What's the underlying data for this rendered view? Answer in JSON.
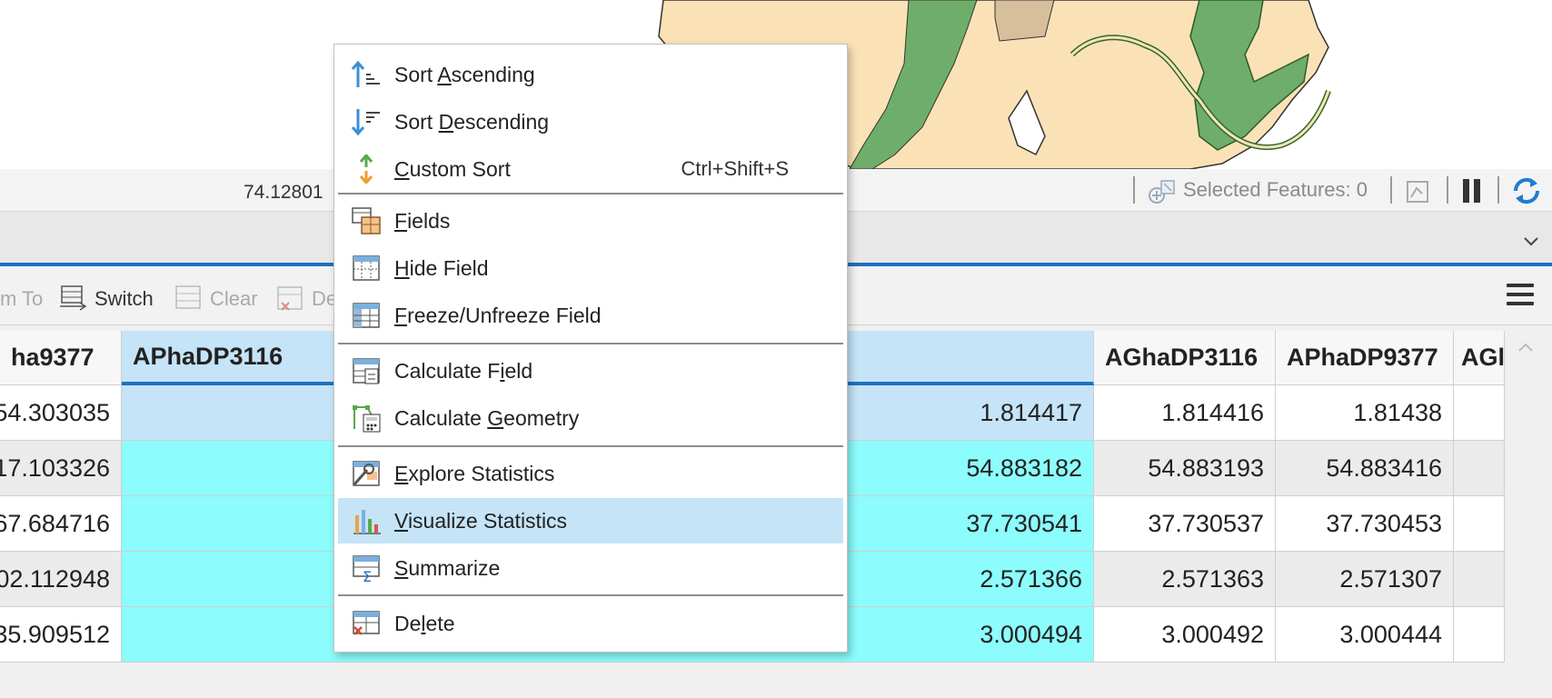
{
  "status": {
    "coordinate": "74.12801",
    "selected_features": "Selected Features: 0"
  },
  "toolbar": {
    "zoom_to_label": "m To",
    "switch_label": "Switch",
    "clear_label": "Clear",
    "delete_label": "De"
  },
  "table": {
    "headers": [
      "ha9377",
      "APhaDP3116",
      "AGhaDP3116",
      "APhaDP9377",
      "AGl"
    ],
    "rows": [
      {
        "c0": "54.303035",
        "c2": "1.814417",
        "c3": "1.814416",
        "c4": "1.81438"
      },
      {
        "c0": "17.103326",
        "c2": "54.883182",
        "c3": "54.883193",
        "c4": "54.883416"
      },
      {
        "c0": "67.684716",
        "c2": "37.730541",
        "c3": "37.730537",
        "c4": "37.730453"
      },
      {
        "c0": "02.112948",
        "c2": "2.571366",
        "c3": "2.571363",
        "c4": "2.571307"
      },
      {
        "c0": "35.909512",
        "c2": "3.000494",
        "c3": "3.000492",
        "c4": "3.000444"
      }
    ]
  },
  "context_menu": {
    "sort_ascending": {
      "pre": "Sort ",
      "key": "A",
      "post": "scending"
    },
    "sort_descending": {
      "pre": "Sort ",
      "key": "D",
      "post": "escending"
    },
    "custom_sort": {
      "pre": "",
      "key": "C",
      "post": "ustom Sort",
      "shortcut": "Ctrl+Shift+S"
    },
    "fields": {
      "pre": "",
      "key": "F",
      "post": "ields"
    },
    "hide_field": {
      "pre": "",
      "key": "H",
      "post": "ide Field"
    },
    "freeze_field": {
      "pre": "",
      "key": "F",
      "post": "reeze/Unfreeze Field"
    },
    "calculate_field": {
      "pre": "Calculate F",
      "key": "i",
      "post": "eld"
    },
    "calculate_geometry": {
      "pre": "Calculate ",
      "key": "G",
      "post": "eometry"
    },
    "explore_statistics": {
      "pre": "",
      "key": "E",
      "post": "xplore Statistics"
    },
    "visualize_statistics": {
      "pre": "",
      "key": "V",
      "post": "isualize Statistics"
    },
    "summarize": {
      "pre": "",
      "key": "S",
      "post": "ummarize"
    },
    "delete": {
      "pre": "De",
      "key": "l",
      "post": "ete"
    }
  },
  "colors": {
    "selection_blue": "#c5e4f7",
    "highlight_cyan": "#8cfcfc",
    "accent": "#1f6fc1",
    "map_land": "#fbe2b6",
    "map_forest": "#6fae6a"
  }
}
